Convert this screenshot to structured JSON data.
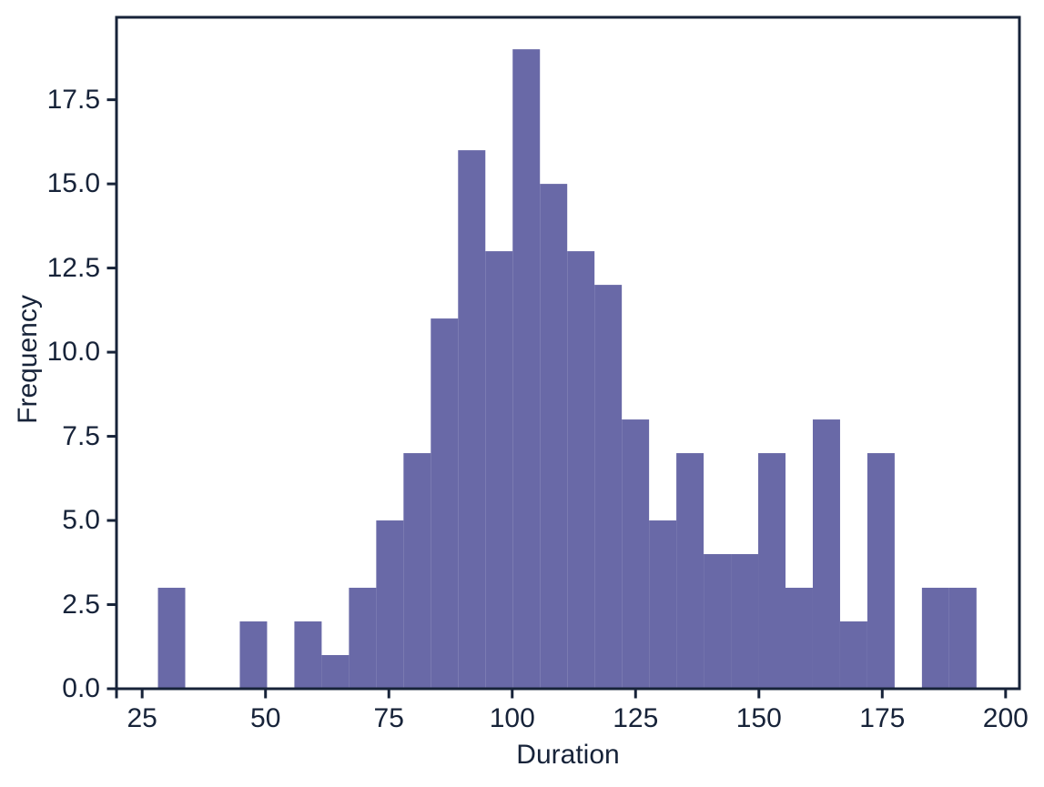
{
  "figure": {
    "background": "#ffffff",
    "axis_color": "#172339",
    "text_color": "#172339"
  },
  "chart_data": {
    "type": "bar",
    "subtype": "histogram",
    "title": "",
    "xlabel": "Duration",
    "ylabel": "Frequency",
    "bar_color": "#6969a7",
    "grid": false,
    "legend_position": "none",
    "bins": {
      "start": 28.2,
      "width": 5.53,
      "count": 30
    },
    "counts": [
      3,
      0,
      0,
      2,
      0,
      2,
      1,
      3,
      5,
      7,
      11,
      16,
      13,
      19,
      15,
      13,
      12,
      8,
      5,
      7,
      4,
      4,
      7,
      3,
      8,
      2,
      7,
      0,
      3,
      3
    ],
    "xlim": [
      19.8,
      202.8
    ],
    "ylim": [
      0,
      19.95
    ],
    "x_ticks": [
      25,
      50,
      75,
      100,
      125,
      150,
      175,
      200
    ],
    "x_tick_labels": [
      "25",
      "50",
      "75",
      "100",
      "125",
      "150",
      "175",
      "200"
    ],
    "y_ticks": [
      0,
      2.5,
      5,
      7.5,
      10,
      12.5,
      15,
      17.5
    ],
    "y_tick_labels": [
      "0.0",
      "2.5",
      "5.0",
      "7.5",
      "10.0",
      "12.5",
      "15.0",
      "17.5"
    ],
    "corner_tick": true
  }
}
